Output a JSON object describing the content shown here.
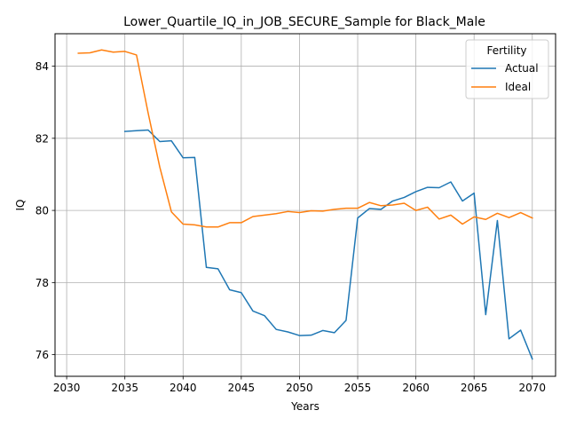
{
  "chart_data": {
    "type": "line",
    "title": "Lower_Quartile_IQ_in_JOB_SECURE_Sample for Black_Male",
    "xlabel": "Years",
    "ylabel": "IQ",
    "xlim": [
      2029,
      2072
    ],
    "ylim": [
      75.4,
      84.9
    ],
    "xticks": [
      2030,
      2035,
      2040,
      2045,
      2050,
      2055,
      2060,
      2065,
      2070
    ],
    "yticks": [
      76,
      78,
      80,
      82,
      84
    ],
    "grid": true,
    "legend": {
      "title": "Fertility",
      "placement": "top-right"
    },
    "series": [
      {
        "name": "Actual",
        "color": "#1f77b4",
        "x": [
          2035,
          2036,
          2037,
          2038,
          2039,
          2040,
          2041,
          2042,
          2043,
          2044,
          2045,
          2046,
          2047,
          2048,
          2049,
          2050,
          2051,
          2052,
          2053,
          2054,
          2055,
          2056,
          2057,
          2058,
          2059,
          2060,
          2061,
          2062,
          2063,
          2064,
          2065,
          2066,
          2067,
          2068,
          2069,
          2070
        ],
        "values": [
          82.19,
          82.21,
          82.23,
          81.91,
          81.93,
          81.46,
          81.47,
          78.42,
          78.38,
          77.8,
          77.72,
          77.21,
          77.08,
          76.7,
          76.63,
          76.53,
          76.54,
          76.67,
          76.61,
          76.95,
          79.79,
          80.05,
          80.03,
          80.26,
          80.36,
          80.52,
          80.64,
          80.63,
          80.79,
          80.26,
          80.48,
          77.11,
          79.72,
          76.44,
          76.68,
          75.88
        ]
      },
      {
        "name": "Ideal",
        "color": "#ff7f0e",
        "x": [
          2031,
          2032,
          2033,
          2034,
          2035,
          2036,
          2037,
          2038,
          2039,
          2040,
          2041,
          2042,
          2043,
          2044,
          2045,
          2046,
          2047,
          2048,
          2049,
          2050,
          2051,
          2052,
          2053,
          2054,
          2055,
          2056,
          2057,
          2058,
          2059,
          2060,
          2061,
          2062,
          2063,
          2064,
          2065,
          2066,
          2067,
          2068,
          2069,
          2070
        ],
        "values": [
          84.36,
          84.37,
          84.45,
          84.39,
          84.41,
          84.31,
          82.7,
          81.2,
          79.96,
          79.62,
          79.6,
          79.54,
          79.54,
          79.66,
          79.66,
          79.83,
          79.87,
          79.91,
          79.97,
          79.94,
          79.99,
          79.98,
          80.03,
          80.06,
          80.06,
          80.22,
          80.13,
          80.15,
          80.2,
          80.0,
          80.09,
          79.76,
          79.87,
          79.62,
          79.82,
          79.75,
          79.92,
          79.8,
          79.94,
          79.79
        ]
      }
    ]
  }
}
